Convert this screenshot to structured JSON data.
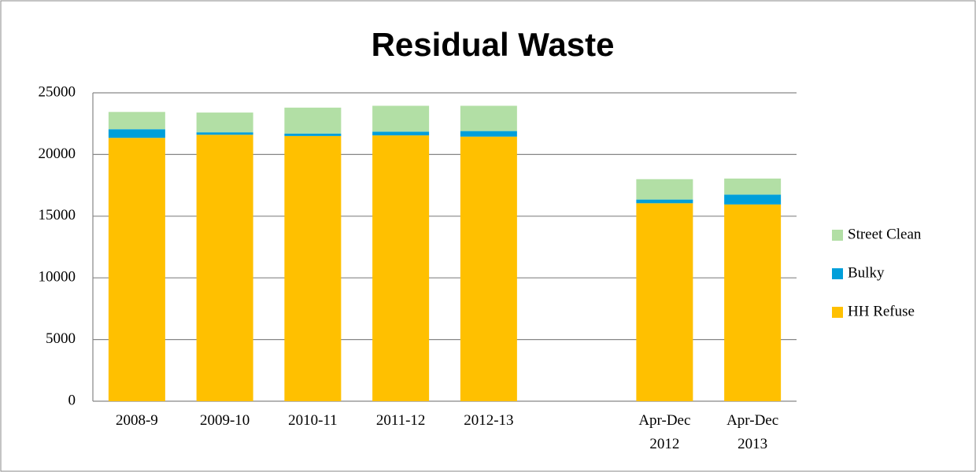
{
  "chart_data": {
    "type": "stacked_bar",
    "title": "Residual Waste",
    "categories": [
      "2008-9",
      "2009-10",
      "2010-11",
      "2011-12",
      "2012-13",
      null,
      "Apr-Dec 2012",
      "Apr-Dec 2013"
    ],
    "series": [
      {
        "name": "HH Refuse",
        "color": "#ffc000",
        "values": [
          21350,
          21600,
          21500,
          21550,
          21450,
          null,
          16050,
          15950
        ]
      },
      {
        "name": "Bulky",
        "color": "#009fda",
        "values": [
          700,
          200,
          200,
          300,
          450,
          null,
          300,
          800
        ]
      },
      {
        "name": "Street Clean",
        "color": "#b2dfa5",
        "values": [
          1400,
          1600,
          2100,
          2100,
          2050,
          null,
          1650,
          1300
        ]
      }
    ],
    "ylim": [
      0,
      25000
    ],
    "yticks": [
      0,
      5000,
      10000,
      15000,
      20000,
      25000
    ],
    "grid": true,
    "legend": "right"
  }
}
